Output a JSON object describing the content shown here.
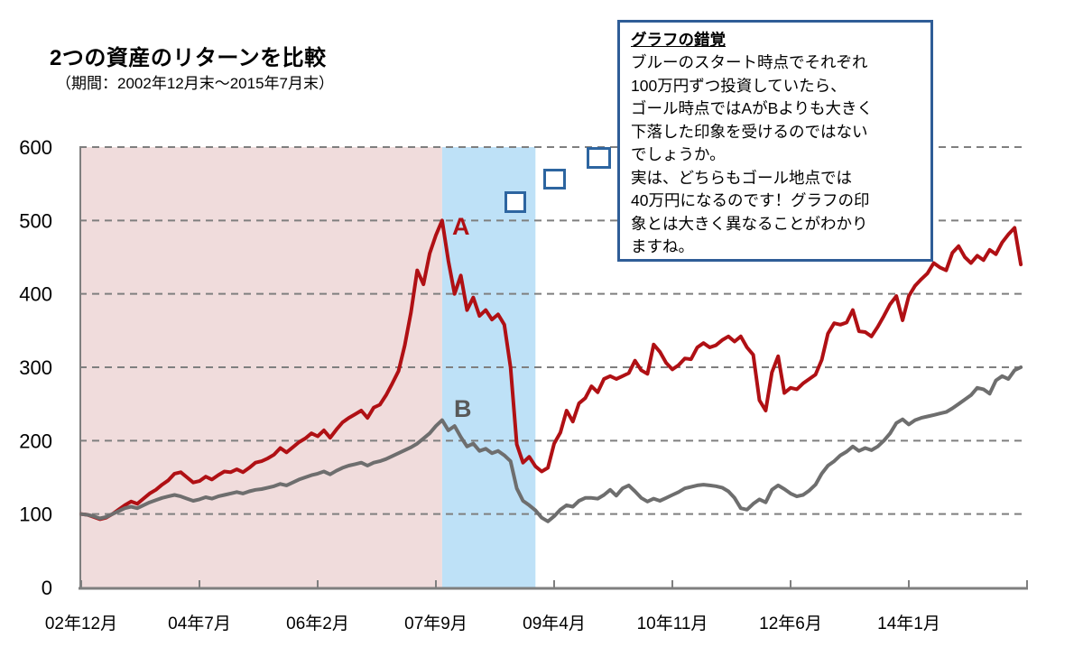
{
  "header": {
    "title": "2つの資産のリターンを比較",
    "subtitle": "（期間：2002年12月末～2015年7月末）"
  },
  "annotation": {
    "title": "グラフの錯覚",
    "body": "ブルーのスタート時点でそれぞれ\n100万円ずつ投資していたら、\nゴール時点ではAがBよりも大きく\n下落した印象を受けるのではない\nでしょうか。\n実は、どちらもゴール地点では\n40万円になるのです！グラフの印\n象とは大きく異なることがわかり\nますね。",
    "border_color": "#2f5d97"
  },
  "colors": {
    "grid": "#7f7f7f",
    "axis": "#7f7f7f",
    "pink_region": "#f0dcdc",
    "blue_region": "#bee1f7",
    "square_marker_border": "#2d65a0",
    "series_a": "#b01014",
    "series_b": "#6e6e6e",
    "label_b_text": "#595959"
  },
  "chart_data": {
    "type": "line",
    "title": "2つの資産のリターンを比較",
    "subtitle": "（期間：2002年12月末～2015年7月末）",
    "grid": "horizontal-dashed",
    "legend_position": "none",
    "x_axis": {
      "tick_labels": [
        "02年12月",
        "04年7月",
        "06年2月",
        "07年9月",
        "09年4月",
        "10年11月",
        "12年6月",
        "14年1月"
      ],
      "tick_month_indices": [
        0,
        19,
        38,
        57,
        76,
        95,
        114,
        133
      ],
      "axis_end_month": 152,
      "months_total": 152
    },
    "y_axis": {
      "min": 0,
      "max": 600,
      "tick_step": 100,
      "tick_labels": [
        "0",
        "100",
        "200",
        "300",
        "400",
        "500",
        "600"
      ]
    },
    "regions": [
      {
        "name": "pink-shaded-period",
        "start_month": 0,
        "end_month": 58,
        "color": "#f0dcdc"
      },
      {
        "name": "blue-shaded-period",
        "start_month": 58,
        "end_month": 73,
        "color": "#bee1f7"
      }
    ],
    "markers": {
      "shape": "open-square",
      "count": 3,
      "color": "#2d65a0"
    },
    "series": [
      {
        "name": "A",
        "color": "#b01014",
        "values": [
          100,
          99,
          96,
          93,
          95,
          100,
          106,
          112,
          117,
          114,
          121,
          128,
          133,
          140,
          146,
          155,
          157,
          150,
          143,
          145,
          151,
          147,
          153,
          158,
          157,
          161,
          157,
          163,
          170,
          172,
          176,
          181,
          190,
          184,
          191,
          198,
          203,
          210,
          206,
          214,
          204,
          215,
          225,
          231,
          236,
          241,
          231,
          245,
          249,
          262,
          278,
          295,
          330,
          375,
          432,
          413,
          455,
          480,
          500,
          445,
          400,
          425,
          378,
          395,
          370,
          378,
          365,
          372,
          358,
          300,
          195,
          170,
          178,
          165,
          158,
          163,
          196,
          211,
          241,
          226,
          251,
          258,
          274,
          266,
          284,
          288,
          284,
          288,
          292,
          309,
          296,
          291,
          331,
          321,
          306,
          297,
          303,
          312,
          311,
          327,
          333,
          327,
          330,
          337,
          342,
          335,
          342,
          327,
          317,
          255,
          241,
          293,
          315,
          265,
          272,
          270,
          278,
          284,
          290,
          310,
          346,
          360,
          358,
          361,
          378,
          349,
          348,
          342,
          355,
          370,
          386,
          397,
          364,
          397,
          411,
          420,
          428,
          442,
          436,
          432,
          456,
          465,
          450,
          442,
          452,
          446,
          460,
          454,
          470,
          481,
          490,
          440
        ]
      },
      {
        "name": "B",
        "color": "#6e6e6e",
        "values": [
          100,
          99,
          97,
          94,
          96,
          100,
          104,
          108,
          110,
          108,
          112,
          116,
          119,
          122,
          124,
          126,
          124,
          121,
          118,
          120,
          123,
          121,
          124,
          126,
          128,
          130,
          128,
          131,
          133,
          134,
          136,
          138,
          141,
          139,
          143,
          147,
          150,
          153,
          155,
          158,
          154,
          159,
          163,
          166,
          168,
          170,
          166,
          170,
          172,
          175,
          179,
          183,
          187,
          191,
          196,
          203,
          210,
          220,
          228,
          214,
          220,
          205,
          192,
          196,
          186,
          189,
          183,
          186,
          180,
          172,
          135,
          118,
          112,
          105,
          95,
          90,
          97,
          106,
          112,
          110,
          118,
          122,
          122,
          121,
          126,
          133,
          125,
          135,
          139,
          131,
          122,
          117,
          121,
          118,
          122,
          126,
          130,
          135,
          137,
          139,
          140,
          139,
          138,
          136,
          131,
          122,
          108,
          106,
          114,
          120,
          116,
          133,
          139,
          134,
          128,
          124,
          126,
          132,
          140,
          155,
          166,
          172,
          180,
          185,
          192,
          186,
          190,
          187,
          192,
          200,
          210,
          224,
          229,
          222,
          228,
          231,
          233,
          235,
          237,
          239,
          244,
          250,
          256,
          262,
          272,
          270,
          264,
          282,
          288,
          284,
          296,
          300
        ]
      }
    ]
  }
}
